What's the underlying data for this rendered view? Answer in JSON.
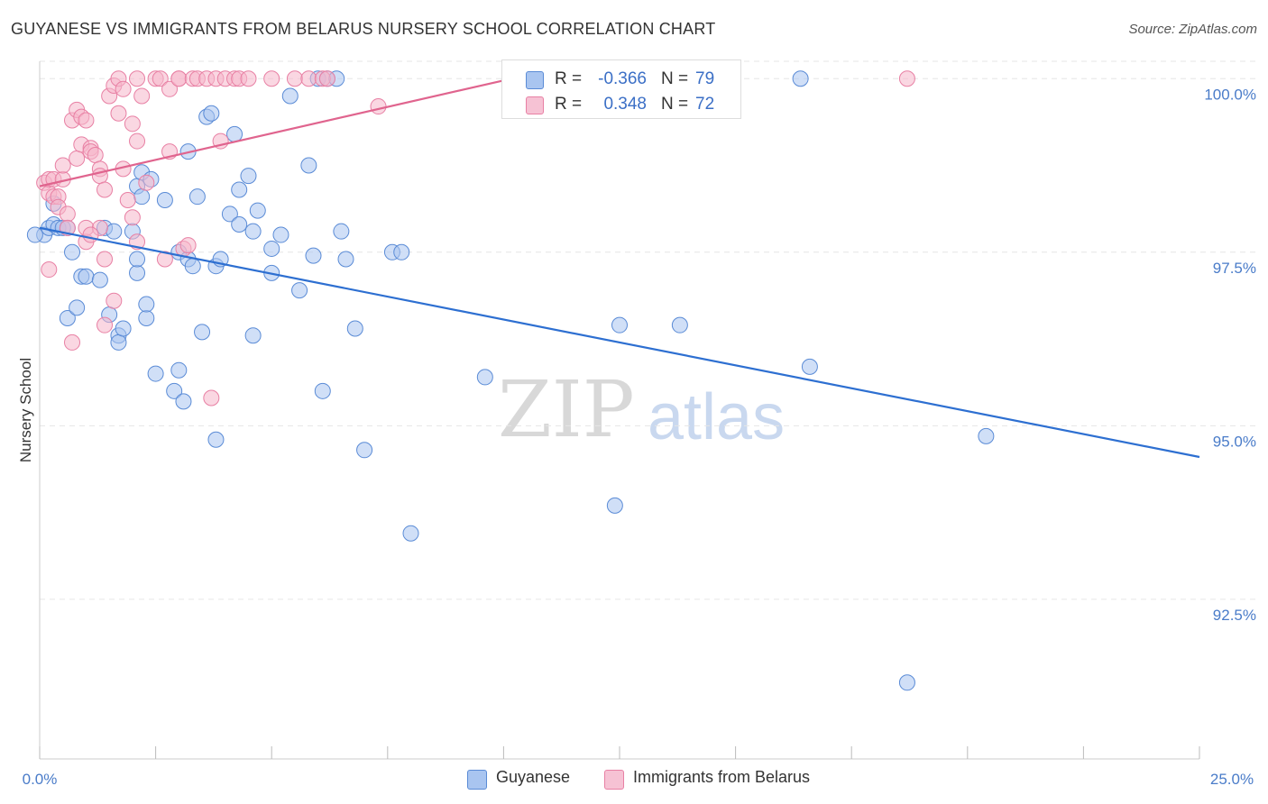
{
  "title": "GUYANESE VS IMMIGRANTS FROM BELARUS NURSERY SCHOOL CORRELATION CHART",
  "source": "Source: ZipAtlas.com",
  "watermark": {
    "zip": "ZIP",
    "atlas": "atlas"
  },
  "legend_top": [
    {
      "r_label": "R =",
      "r_value": "-0.366",
      "n_label": "N =",
      "n_value": "79"
    },
    {
      "r_label": "R =",
      "r_value": "0.348",
      "n_label": "N =",
      "n_value": "72"
    }
  ],
  "legend_bottom": [
    "Guyanese",
    "Immigrants from Belarus"
  ],
  "colors": {
    "blue_fill": "#a9c5f0",
    "blue_stroke": "#5a8bd6",
    "blue_line": "#2d6fd1",
    "pink_fill": "#f6b6cb",
    "pink_stroke": "#e880a4",
    "pink_line": "#e0648e",
    "tick_text": "#4a7cc9"
  },
  "chart_data": {
    "type": "scatter",
    "title": "GUYANESE VS IMMIGRANTS FROM BELARUS NURSERY SCHOOL CORRELATION CHART",
    "xlabel": "",
    "ylabel": "Nursery School",
    "xlim": [
      0,
      25
    ],
    "ylim": [
      90.2,
      100.25
    ],
    "x_tick_labels": [
      "0.0%",
      "25.0%"
    ],
    "y_ticks": [
      92.5,
      95.0,
      97.5,
      100.0
    ],
    "y_tick_labels": [
      "92.5%",
      "95.0%",
      "97.5%",
      "100.0%"
    ],
    "grid": true,
    "series": [
      {
        "name": "Guyanese",
        "r": -0.366,
        "n": 79,
        "trend": [
          [
            0,
            97.85
          ],
          [
            25,
            94.55
          ]
        ],
        "points": [
          [
            0.1,
            97.75
          ],
          [
            0.2,
            97.85
          ],
          [
            0.3,
            97.9
          ],
          [
            0.4,
            97.85
          ],
          [
            0.5,
            97.85
          ],
          [
            0.6,
            97.85
          ],
          [
            0.7,
            97.5
          ],
          [
            0.6,
            96.55
          ],
          [
            0.8,
            96.7
          ],
          [
            0.9,
            97.15
          ],
          [
            1.0,
            97.15
          ],
          [
            1.3,
            97.1
          ],
          [
            1.4,
            97.85
          ],
          [
            1.6,
            97.8
          ],
          [
            1.5,
            96.6
          ],
          [
            1.7,
            96.3
          ],
          [
            1.7,
            96.2
          ],
          [
            1.8,
            96.4
          ],
          [
            2.0,
            97.8
          ],
          [
            2.1,
            97.2
          ],
          [
            2.1,
            97.4
          ],
          [
            2.1,
            98.45
          ],
          [
            2.2,
            98.65
          ],
          [
            2.3,
            96.55
          ],
          [
            2.2,
            98.3
          ],
          [
            2.3,
            96.75
          ],
          [
            2.4,
            98.55
          ],
          [
            2.5,
            95.75
          ],
          [
            2.7,
            98.25
          ],
          [
            2.9,
            95.5
          ],
          [
            3.0,
            95.8
          ],
          [
            3.0,
            97.5
          ],
          [
            3.1,
            95.35
          ],
          [
            3.2,
            97.4
          ],
          [
            3.2,
            98.95
          ],
          [
            3.3,
            97.3
          ],
          [
            3.4,
            98.3
          ],
          [
            3.5,
            96.35
          ],
          [
            3.6,
            99.45
          ],
          [
            3.7,
            99.5
          ],
          [
            3.8,
            94.8
          ],
          [
            3.8,
            97.3
          ],
          [
            3.9,
            97.4
          ],
          [
            4.1,
            98.05
          ],
          [
            4.2,
            99.2
          ],
          [
            4.3,
            98.4
          ],
          [
            4.3,
            97.9
          ],
          [
            4.5,
            98.6
          ],
          [
            4.6,
            97.8
          ],
          [
            4.6,
            96.3
          ],
          [
            4.7,
            98.1
          ],
          [
            5.0,
            97.2
          ],
          [
            5.0,
            97.55
          ],
          [
            5.2,
            97.75
          ],
          [
            5.4,
            99.75
          ],
          [
            5.6,
            96.95
          ],
          [
            5.8,
            98.75
          ],
          [
            5.9,
            97.45
          ],
          [
            6.0,
            100.0
          ],
          [
            6.1,
            95.5
          ],
          [
            6.2,
            100.0
          ],
          [
            6.4,
            100.0
          ],
          [
            6.5,
            97.8
          ],
          [
            6.6,
            97.4
          ],
          [
            6.8,
            96.4
          ],
          [
            7.0,
            94.65
          ],
          [
            7.6,
            97.5
          ],
          [
            7.8,
            97.5
          ],
          [
            8.0,
            93.45
          ],
          [
            9.6,
            95.7
          ],
          [
            12.4,
            93.85
          ],
          [
            12.5,
            96.45
          ],
          [
            13.8,
            96.45
          ],
          [
            16.4,
            100.0
          ],
          [
            16.6,
            95.85
          ],
          [
            18.7,
            91.3
          ],
          [
            20.4,
            94.85
          ],
          [
            -0.1,
            97.75
          ],
          [
            0.3,
            98.2
          ]
        ]
      },
      {
        "name": "Immigrants from Belarus",
        "r": 0.348,
        "n": 72,
        "trend": [
          [
            0,
            98.45
          ],
          [
            10.5,
            100.05
          ]
        ],
        "points": [
          [
            0.1,
            98.5
          ],
          [
            0.2,
            98.35
          ],
          [
            0.2,
            98.55
          ],
          [
            0.3,
            98.3
          ],
          [
            0.3,
            98.55
          ],
          [
            0.4,
            98.3
          ],
          [
            0.4,
            98.15
          ],
          [
            0.5,
            98.55
          ],
          [
            0.5,
            98.75
          ],
          [
            0.6,
            98.05
          ],
          [
            0.6,
            97.85
          ],
          [
            0.7,
            99.4
          ],
          [
            0.8,
            99.55
          ],
          [
            0.8,
            98.85
          ],
          [
            0.9,
            99.05
          ],
          [
            0.9,
            99.45
          ],
          [
            1.0,
            99.4
          ],
          [
            1.0,
            97.65
          ],
          [
            1.0,
            97.85
          ],
          [
            1.1,
            99.0
          ],
          [
            1.1,
            98.95
          ],
          [
            1.2,
            98.9
          ],
          [
            1.3,
            98.7
          ],
          [
            1.3,
            98.6
          ],
          [
            1.3,
            97.85
          ],
          [
            1.4,
            98.4
          ],
          [
            1.4,
            97.4
          ],
          [
            1.4,
            96.45
          ],
          [
            1.5,
            99.75
          ],
          [
            1.6,
            99.9
          ],
          [
            1.6,
            96.8
          ],
          [
            1.7,
            100.0
          ],
          [
            1.7,
            99.5
          ],
          [
            1.8,
            99.85
          ],
          [
            1.8,
            98.7
          ],
          [
            1.9,
            98.25
          ],
          [
            2.0,
            98.0
          ],
          [
            2.0,
            99.35
          ],
          [
            2.1,
            97.65
          ],
          [
            2.1,
            99.1
          ],
          [
            2.1,
            100.0
          ],
          [
            2.2,
            99.75
          ],
          [
            2.3,
            98.5
          ],
          [
            2.5,
            100.0
          ],
          [
            2.6,
            100.0
          ],
          [
            2.7,
            97.4
          ],
          [
            2.8,
            98.95
          ],
          [
            2.8,
            99.85
          ],
          [
            3.0,
            100.0
          ],
          [
            3.0,
            100.0
          ],
          [
            3.1,
            97.55
          ],
          [
            3.2,
            97.6
          ],
          [
            3.3,
            100.0
          ],
          [
            3.4,
            100.0
          ],
          [
            3.6,
            100.0
          ],
          [
            3.7,
            95.4
          ],
          [
            3.8,
            100.0
          ],
          [
            3.9,
            99.1
          ],
          [
            4.0,
            100.0
          ],
          [
            4.2,
            100.0
          ],
          [
            4.3,
            100.0
          ],
          [
            4.5,
            100.0
          ],
          [
            5.0,
            100.0
          ],
          [
            5.5,
            100.0
          ],
          [
            5.8,
            100.0
          ],
          [
            6.1,
            100.0
          ],
          [
            6.2,
            100.0
          ],
          [
            7.3,
            99.6
          ],
          [
            0.2,
            97.25
          ],
          [
            0.7,
            96.2
          ],
          [
            1.1,
            97.75
          ],
          [
            18.7,
            100.0
          ]
        ]
      }
    ]
  }
}
